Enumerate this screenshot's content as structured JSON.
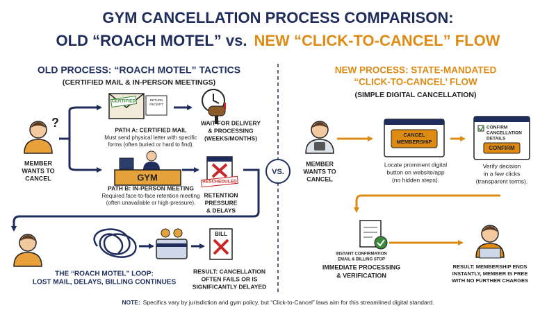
{
  "title": {
    "line1": "GYM CANCELLATION PROCESS COMPARISON:",
    "line2_old": "OLD “ROACH MOTEL” vs.",
    "line2_new": "NEW “CLICK-TO-CANCEL” FLOW"
  },
  "old_process": {
    "heading": "OLD PROCESS: “ROACH MOTEL” TACTICS",
    "subheading": "(CERTIFIED MAIL & IN-PERSON MEETINGS)",
    "member": [
      "MEMBER",
      "WANTS TO",
      "CANCEL"
    ],
    "envelope_stamp": "CERTIFIED",
    "envelope_receipt": [
      "RETURN",
      "RECEIPT"
    ],
    "path_a": {
      "title": "PATH A: CERTIFIED MAIL",
      "description": [
        "Must send physical letter with specific",
        "forms (often buried or hard to find)."
      ]
    },
    "wait": [
      "WAIT FOR DELIVERY",
      "& PROCESSING",
      "(WEEKS/MONTHS)"
    ],
    "gym_sign": "GYM",
    "path_b": {
      "title": "PATH B: IN-PERSON MEETING",
      "description": [
        "Required face-to-face retention meeting",
        "(often unavailable or high-pressure)."
      ]
    },
    "calendar_stamp": "RESCHEDULED",
    "retention": [
      "RETENTION",
      "PRESSURE",
      "& DELAYS"
    ],
    "loop": [
      "THE “ROACH MOTEL” LOOP:",
      "LOST MAIL, DELAYS, BILLING CONTINUES"
    ],
    "bill": "BILL",
    "result": [
      "RESULT: CANCELLATION",
      "OFTEN FAILS OR IS",
      "SIGNIFICANTLY DELAYED"
    ]
  },
  "vs": "VS.",
  "new_process": {
    "heading": [
      "NEW PROCESS: STATE-MANDATED",
      "“CLICK-TO-CANCEL’ FLOW"
    ],
    "subheading": "(SIMPLE DIGITAL CANCELLATION)",
    "member": [
      "MEMBER",
      "WANTS TO",
      "CANCEL"
    ],
    "cancel_button": [
      "CANCEL",
      "MEMBERSHIP"
    ],
    "locate": [
      "Locate prominent digital",
      "button on website/app",
      "(no hidden steps)."
    ],
    "confirm_window": [
      "CONFIRM",
      "CANCELLATION",
      "DETAILS"
    ],
    "confirm_button": "CONFIRM",
    "verify": [
      "Verify decision",
      "in a few clicks",
      "(transparent terms)."
    ],
    "instant": [
      "INSTANT CONFIRMATION",
      "EMAIL & BILLING STOP"
    ],
    "immediate": [
      "IMMEDIATE PROCESSING",
      "& VERIFICATION"
    ],
    "result": [
      "RESULT: MEMBERSHIP ENDS",
      "INSTANTLY, MEMBER IS FREE",
      "WITH NO FURTHER CHARGES"
    ]
  },
  "footer": {
    "label": "NOTE:",
    "text": "Specifics vary by jurisdiction and gym policy, but “Click-to-Cancel” laws aim for this streamlined digital standard."
  }
}
